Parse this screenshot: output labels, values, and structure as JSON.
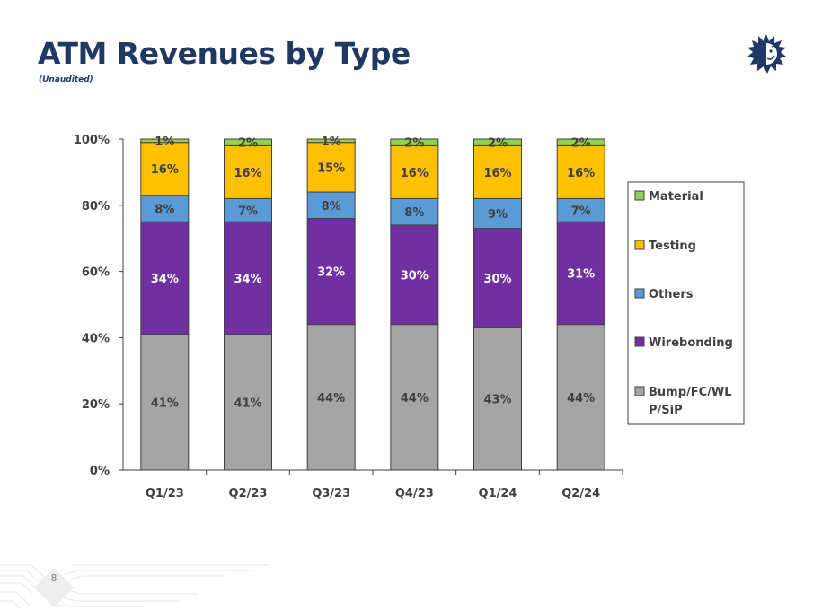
{
  "header": {
    "title": "ATM Revenues by Type",
    "subtitle": "(Unaudited)",
    "logo_icon": "sun-face-logo-icon"
  },
  "footer": {
    "page_number": "8"
  },
  "colors": {
    "title": "#1f3864",
    "material": "#92d050",
    "testing": "#ffc000",
    "others": "#5b9bd5",
    "wirebonding": "#7030a0",
    "bump": "#a5a5a5",
    "label_dark": "#404040",
    "label_light": "#ffffff"
  },
  "chart_data": {
    "type": "bar",
    "stacked": true,
    "percent_stacked": true,
    "title": "ATM Revenues by Type",
    "subtitle": "(Unaudited)",
    "xlabel": "",
    "ylabel": "",
    "ylim": [
      0,
      100
    ],
    "yticks": [
      0,
      20,
      40,
      60,
      80,
      100
    ],
    "ytick_labels": [
      "0%",
      "20%",
      "40%",
      "60%",
      "80%",
      "100%"
    ],
    "grid": false,
    "legend_position": "right",
    "categories": [
      "Q1/23",
      "Q2/23",
      "Q3/23",
      "Q4/23",
      "Q1/24",
      "Q2/24"
    ],
    "series": [
      {
        "name": "Bump/FC/WLP/SiP",
        "legend_lines": [
          "Bump/FC/WL",
          "P/SiP"
        ],
        "color": "#a5a5a5",
        "label_color": "#404040",
        "values": [
          41,
          41,
          44,
          44,
          43,
          44
        ]
      },
      {
        "name": "Wirebonding",
        "legend_lines": [
          "Wirebonding"
        ],
        "color": "#7030a0",
        "label_color": "#ffffff",
        "values": [
          34,
          34,
          32,
          30,
          30,
          31
        ]
      },
      {
        "name": "Others",
        "legend_lines": [
          "Others"
        ],
        "color": "#5b9bd5",
        "label_color": "#404040",
        "values": [
          8,
          7,
          8,
          8,
          9,
          7
        ]
      },
      {
        "name": "Testing",
        "legend_lines": [
          "Testing"
        ],
        "color": "#ffc000",
        "label_color": "#404040",
        "values": [
          16,
          16,
          15,
          16,
          16,
          16
        ]
      },
      {
        "name": "Material",
        "legend_lines": [
          "Material"
        ],
        "color": "#92d050",
        "label_color": "#404040",
        "values": [
          1,
          2,
          1,
          2,
          2,
          2
        ]
      }
    ],
    "legend_order": [
      "Material",
      "Testing",
      "Others",
      "Wirebonding",
      "Bump/FC/WLP/SiP"
    ]
  }
}
